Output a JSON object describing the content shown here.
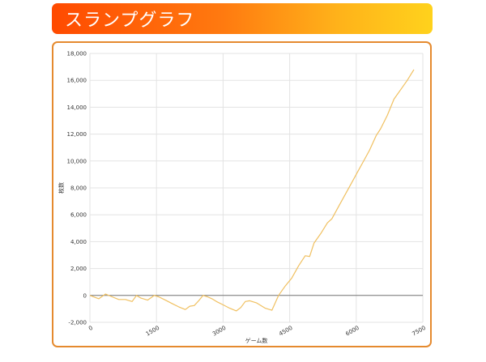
{
  "header": {
    "title": "スランプグラフ"
  },
  "colors": {
    "line": "#f0c060",
    "zero_line": "#777777",
    "grid": "#e3e3e3",
    "border": "#e58a2e"
  },
  "chart_data": {
    "type": "line",
    "title": "",
    "xlabel": "ゲーム数",
    "ylabel": "枚数",
    "xlim": [
      0,
      7500
    ],
    "ylim": [
      -2000,
      18000
    ],
    "x_ticks": [
      {
        "value": 0,
        "label": "0"
      },
      {
        "value": 1500,
        "label": "1500"
      },
      {
        "value": 3000,
        "label": "3000"
      },
      {
        "value": 4500,
        "label": "4500"
      },
      {
        "value": 6000,
        "label": "6000"
      },
      {
        "value": 7500,
        "label": "7500"
      }
    ],
    "y_ticks": [
      {
        "value": -2000,
        "label": "-2,000"
      },
      {
        "value": 0,
        "label": "0"
      },
      {
        "value": 2000,
        "label": "2,000"
      },
      {
        "value": 4000,
        "label": "4,000"
      },
      {
        "value": 6000,
        "label": "6,000"
      },
      {
        "value": 8000,
        "label": "8,000"
      },
      {
        "value": 10000,
        "label": "10,000"
      },
      {
        "value": 12000,
        "label": "12,000"
      },
      {
        "value": 14000,
        "label": "14,000"
      },
      {
        "value": 16000,
        "label": "16,000"
      },
      {
        "value": 18000,
        "label": "18,000"
      }
    ],
    "grid": true,
    "x": [
      0,
      200,
      350,
      500,
      650,
      800,
      950,
      1050,
      1150,
      1300,
      1450,
      1550,
      1700,
      1850,
      2000,
      2150,
      2250,
      2350,
      2450,
      2550,
      2650,
      2750,
      2850,
      3000,
      3150,
      3300,
      3400,
      3500,
      3600,
      3750,
      3850,
      3950,
      4100,
      4250,
      4400,
      4550,
      4700,
      4850,
      4950,
      5050,
      5200,
      5350,
      5450,
      5600,
      5750,
      5900,
      6050,
      6150,
      6300,
      6450,
      6550,
      6700,
      6850,
      7000,
      7150,
      7300
    ],
    "values": [
      0,
      -250,
      100,
      -100,
      -300,
      -300,
      -450,
      0,
      -200,
      -350,
      0,
      -100,
      -350,
      -600,
      -850,
      -1050,
      -800,
      -750,
      -400,
      0,
      -100,
      -250,
      -450,
      -700,
      -950,
      -1150,
      -900,
      -450,
      -400,
      -550,
      -750,
      -950,
      -1100,
      0,
      700,
      1300,
      2200,
      2950,
      2900,
      3900,
      4600,
      5400,
      5700,
      6600,
      7500,
      8400,
      9300,
      9900,
      10800,
      11900,
      12400,
      13400,
      14600,
      15300,
      16000,
      16800
    ],
    "series_name": ""
  }
}
